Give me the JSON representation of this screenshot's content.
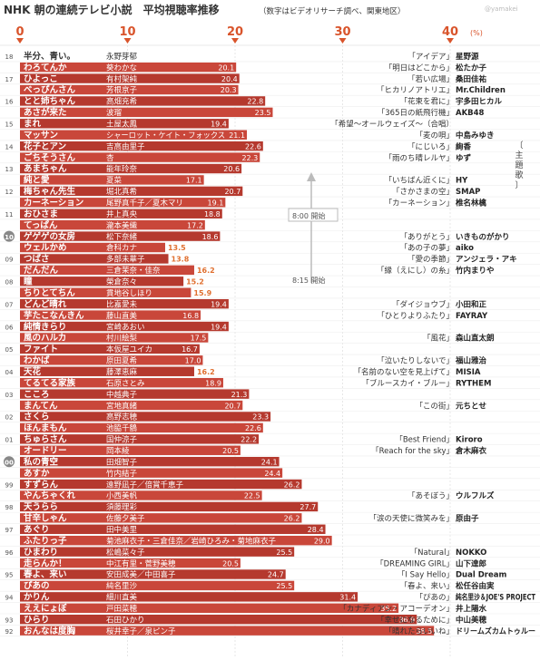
{
  "title": "NHK 朝の連続テレビ小説　平均視聴率推移",
  "subtitle": "（数字はビデオリサーチ調べ、関東地区）",
  "credit": "@yamakei",
  "unit_label": "(%)",
  "side_label": "〔主題歌〕",
  "time_note_800": "8:00 開始",
  "time_note_815": "8:15 開始",
  "colors": {
    "bar": "#c9473a",
    "bar_alt": "#b5392e",
    "axis_text": "#d9542b",
    "grid": "#dddddd"
  },
  "chart_data": {
    "type": "bar",
    "orientation": "horizontal",
    "xlim": [
      0,
      40
    ],
    "xticks": [
      0,
      10,
      20,
      30,
      40
    ],
    "grid": true,
    "rows": [
      {
        "year": "18",
        "title": "半分、青い。",
        "actor": "永野芽郁",
        "value": null,
        "song": "「アイデア」",
        "artist": "星野源"
      },
      {
        "year": "",
        "title": "わろてんか",
        "actor": "葵わかな",
        "value": 20.1,
        "song": "「明日はどこから」",
        "artist": "松たか子"
      },
      {
        "year": "17",
        "title": "ひよっこ",
        "actor": "有村架純",
        "value": 20.4,
        "song": "「若い広場」",
        "artist": "桑田佳祐"
      },
      {
        "year": "",
        "title": "べっぴんさん",
        "actor": "芳根京子",
        "value": 20.3,
        "song": "「ヒカリノアトリエ」",
        "artist": "Mr.Children"
      },
      {
        "year": "16",
        "title": "とと姉ちゃん",
        "actor": "高畑充希",
        "value": 22.8,
        "song": "「花束を君に」",
        "artist": "宇多田ヒカル"
      },
      {
        "year": "",
        "title": "あさが来た",
        "actor": "波瑠",
        "value": 23.5,
        "song": "「365日の紙飛行機」",
        "artist": "AKB48"
      },
      {
        "year": "15",
        "title": "まれ",
        "actor": "土屋太鳳",
        "value": 19.4,
        "song": "「希望～オールウェイズ～（合唱）",
        "artist": ""
      },
      {
        "year": "",
        "title": "マッサン",
        "actor": "シャーロット・ケイト・フォックス",
        "value": 21.1,
        "song": "「麦の唄」",
        "artist": "中島みゆき"
      },
      {
        "year": "14",
        "title": "花子とアン",
        "actor": "吉高由里子",
        "value": 22.6,
        "song": "「にじいろ」",
        "artist": "絢香"
      },
      {
        "year": "",
        "title": "ごちそうさん",
        "actor": "杏",
        "value": 22.3,
        "song": "「雨のち晴レルヤ」",
        "artist": "ゆず"
      },
      {
        "year": "13",
        "title": "あまちゃん",
        "actor": "能年玲奈",
        "value": 20.6,
        "song": "",
        "artist": ""
      },
      {
        "year": "",
        "title": "純と愛",
        "actor": "夏菜",
        "value": 17.1,
        "song": "「いちばん近くに」",
        "artist": "HY"
      },
      {
        "year": "12",
        "title": "梅ちゃん先生",
        "actor": "堀北真希",
        "value": 20.7,
        "song": "「さかさまの空」",
        "artist": "SMAP"
      },
      {
        "year": "",
        "title": "カーネーション",
        "actor": "尾野真千子／夏木マリ",
        "value": 19.1,
        "song": "「カーネーション」",
        "artist": "椎名林檎"
      },
      {
        "year": "11",
        "title": "おひさま",
        "actor": "井上真央",
        "value": 18.8,
        "song": "",
        "artist": ""
      },
      {
        "year": "",
        "title": "てっぱん",
        "actor": "瀧本美織",
        "value": 17.2,
        "song": "",
        "artist": ""
      },
      {
        "year": "10",
        "title": "ゲゲゲの女房",
        "actor": "松下奈緒",
        "value": 18.6,
        "song": "「ありがとう」",
        "artist": "いきものがかり"
      },
      {
        "year": "",
        "title": "ウェルかめ",
        "actor": "倉科カナ",
        "value": 13.5,
        "song": "「あの子の夢」",
        "artist": "aiko"
      },
      {
        "year": "09",
        "title": "つばさ",
        "actor": "多部未華子",
        "value": 13.8,
        "song": "「愛の季節」",
        "artist": "アンジェラ・アキ"
      },
      {
        "year": "",
        "title": "だんだん",
        "actor": "三倉茉奈・佳奈",
        "value": 16.2,
        "song": "「縁（えにし）の糸」",
        "artist": "竹内まりや"
      },
      {
        "year": "08",
        "title": "瞳",
        "actor": "榮倉奈々",
        "value": 15.2,
        "song": "",
        "artist": ""
      },
      {
        "year": "",
        "title": "ちりとてちん",
        "actor": "貫地谷しほり",
        "value": 15.9,
        "song": "",
        "artist": ""
      },
      {
        "year": "07",
        "title": "どんど晴れ",
        "actor": "比嘉愛未",
        "value": 19.4,
        "song": "「ダイジョウブ」",
        "artist": "小田和正"
      },
      {
        "year": "",
        "title": "芋たこなんきん",
        "actor": "藤山直美",
        "value": 16.8,
        "song": "「ひとりよりふたり」",
        "artist": "FAYRAY"
      },
      {
        "year": "06",
        "title": "純情きらり",
        "actor": "宮崎あおい",
        "value": 19.4,
        "song": "",
        "artist": ""
      },
      {
        "year": "",
        "title": "風のハルカ",
        "actor": "村川絵梨",
        "value": 17.5,
        "song": "「風花」",
        "artist": "森山直太朗"
      },
      {
        "year": "05",
        "title": "ファイト",
        "actor": "本仮屋ユイカ",
        "value": 16.7,
        "song": "",
        "artist": ""
      },
      {
        "year": "",
        "title": "わかば",
        "actor": "原田夏希",
        "value": 17.0,
        "song": "「泣いたりしないで」",
        "artist": "福山雅治"
      },
      {
        "year": "04",
        "title": "天花",
        "actor": "藤澤恵麻",
        "value": 16.2,
        "song": "「名前のない空を見上げて」",
        "artist": "MISIA"
      },
      {
        "year": "",
        "title": "てるてる家族",
        "actor": "石原さとみ",
        "value": 18.9,
        "song": "「ブルースカイ・ブルー」",
        "artist": "RYTHEM"
      },
      {
        "year": "03",
        "title": "こころ",
        "actor": "中越典子",
        "value": 21.3,
        "song": "",
        "artist": ""
      },
      {
        "year": "",
        "title": "まんてん",
        "actor": "宮地真緒",
        "value": 20.7,
        "song": "「この街」",
        "artist": "元ちとせ"
      },
      {
        "year": "02",
        "title": "さくら",
        "actor": "高野志穂",
        "value": 23.3,
        "song": "",
        "artist": ""
      },
      {
        "year": "",
        "title": "ほんまもん",
        "actor": "池脇千鶴",
        "value": 22.6,
        "song": "",
        "artist": ""
      },
      {
        "year": "01",
        "title": "ちゅらさん",
        "actor": "国仲涼子",
        "value": 22.2,
        "song": "「Best Friend」",
        "artist": "Kiroro"
      },
      {
        "year": "",
        "title": "オードリー",
        "actor": "岡本綾",
        "value": 20.5,
        "song": "「Reach for the sky」",
        "artist": "倉木麻衣"
      },
      {
        "year": "00",
        "title": "私の青空",
        "actor": "田畑智子",
        "value": 24.1,
        "song": "",
        "artist": ""
      },
      {
        "year": "",
        "title": "あすか",
        "actor": "竹内結子",
        "value": 24.4,
        "song": "",
        "artist": ""
      },
      {
        "year": "99",
        "title": "すずらん",
        "actor": "遠野凪子／倍賞千恵子",
        "value": 26.2,
        "song": "",
        "artist": ""
      },
      {
        "year": "",
        "title": "やんちゃくれ",
        "actor": "小西美帆",
        "value": 22.5,
        "song": "「あそぼう」",
        "artist": "ウルフルズ"
      },
      {
        "year": "98",
        "title": "天うらら",
        "actor": "須藤理彩",
        "value": 27.7,
        "song": "",
        "artist": ""
      },
      {
        "year": "",
        "title": "甘辛しゃん",
        "actor": "佐藤夕美子",
        "value": 26.2,
        "song": "「涙の天使に微笑みを」",
        "artist": "原由子"
      },
      {
        "year": "97",
        "title": "あぐり",
        "actor": "田中美里",
        "value": 28.4,
        "song": "",
        "artist": ""
      },
      {
        "year": "",
        "title": "ふたりっ子",
        "actor": "菊池麻衣子・三倉佳奈／岩崎ひろみ・菊地麻衣子",
        "value": 29.0,
        "song": "",
        "artist": ""
      },
      {
        "year": "96",
        "title": "ひまわり",
        "actor": "松嶋菜々子",
        "value": 25.5,
        "song": "「Natural」",
        "artist": "NOKKO"
      },
      {
        "year": "",
        "title": "走らんか！",
        "actor": "中江有里・菅野美穂",
        "value": 20.5,
        "song": "「DREAMING GIRL」",
        "artist": "山下達郎"
      },
      {
        "year": "95",
        "title": "春よ、来い",
        "actor": "安田成美／中田喜子",
        "value": 24.7,
        "song": "「I Say Hello」",
        "artist": "Dual Dream"
      },
      {
        "year": "",
        "title": "ぴあの",
        "actor": "純名里沙",
        "value": 25.5,
        "song": "「春よ、来い」",
        "artist": "松任谷由実"
      },
      {
        "year": "94",
        "title": "かりん",
        "actor": "細川直美",
        "value": 31.4,
        "song": "「ぴあの」",
        "artist": "純名里沙＆JOE'S PROJECT"
      },
      {
        "year": "",
        "title": "ええにょぼ",
        "actor": "戸田菜穂",
        "value": 35.2,
        "song": "「カナディアン・アコーデオン」",
        "artist": "井上陽水"
      },
      {
        "year": "93",
        "title": "ひらり",
        "actor": "石田ひかり",
        "value": 36.9,
        "song": "「幸せになるために」",
        "artist": "中山美穂"
      },
      {
        "year": "92",
        "title": "おんなは度胸",
        "actor": "桜井幸子／泉ピン子",
        "value": 38.5,
        "song": "「晴れたらいいね」",
        "artist": "ドリームズカムトゥルー"
      }
    ]
  }
}
